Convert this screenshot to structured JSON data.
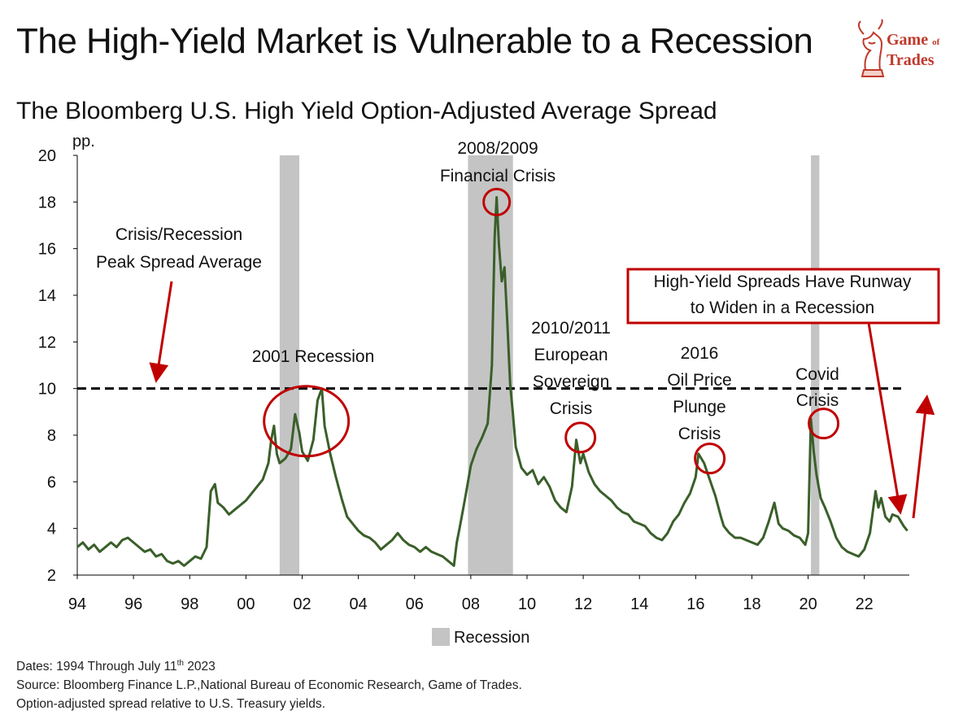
{
  "header": {
    "title": "The High-Yield Market is Vulnerable to a Recession",
    "subtitle": "The Bloomberg U.S. High Yield Option-Adjusted Average Spread"
  },
  "logo": {
    "line1": "Game",
    "line1_small": "of",
    "line2": "Trades",
    "icon": "bull-chess-knight-icon",
    "color": "#c0392b"
  },
  "footer": {
    "dates_prefix": "Dates: 1994 Through July 11",
    "dates_sup": "th",
    "dates_suffix": " 2023",
    "source": "Source: Bloomberg Finance L.P.,National Bureau of Economic Research, Game of Trades.",
    "note": "Option-adjusted spread relative to U.S. Treasury yields."
  },
  "chart_data": {
    "type": "line",
    "title": "The Bloomberg U.S. High Yield Option-Adjusted Average Spread",
    "ylabel": "pp.",
    "xlabel": "",
    "xlim": [
      1994,
      2023.6
    ],
    "ylim": [
      2,
      20
    ],
    "yticks": [
      2,
      4,
      6,
      8,
      10,
      12,
      14,
      16,
      18,
      20
    ],
    "xticks": [
      {
        "year": 1994,
        "label": "94"
      },
      {
        "year": 1996,
        "label": "96"
      },
      {
        "year": 1998,
        "label": "98"
      },
      {
        "year": 2000,
        "label": "00"
      },
      {
        "year": 2002,
        "label": "02"
      },
      {
        "year": 2004,
        "label": "04"
      },
      {
        "year": 2006,
        "label": "06"
      },
      {
        "year": 2008,
        "label": "08"
      },
      {
        "year": 2010,
        "label": "10"
      },
      {
        "year": 2012,
        "label": "12"
      },
      {
        "year": 2014,
        "label": "14"
      },
      {
        "year": 2016,
        "label": "16"
      },
      {
        "year": 2018,
        "label": "18"
      },
      {
        "year": 2020,
        "label": "20"
      },
      {
        "year": 2022,
        "label": "22"
      }
    ],
    "grid": false,
    "colors": {
      "line": "#3a5f2a",
      "recession": "#c4c4c4",
      "annotation": "#c00000",
      "threshold": "#000000"
    },
    "legend": {
      "position": "bottom-center",
      "label": "Recession"
    },
    "recessions": [
      {
        "start": 2001.2,
        "end": 2001.9
      },
      {
        "start": 2007.9,
        "end": 2009.5
      },
      {
        "start": 2020.1,
        "end": 2020.4
      }
    ],
    "threshold": {
      "value": 10
    },
    "series": [
      {
        "x": [
          1994.0,
          1994.2,
          1994.4,
          1994.6,
          1994.8,
          1995.0,
          1995.2,
          1995.4,
          1995.6,
          1995.8,
          1996.0,
          1996.2,
          1996.4,
          1996.6,
          1996.8,
          1997.0,
          1997.2,
          1997.4,
          1997.6,
          1997.8,
          1998.0,
          1998.2,
          1998.4,
          1998.6,
          1998.75,
          1998.9,
          1999.0,
          1999.2,
          1999.4,
          1999.6,
          1999.8,
          2000.0,
          2000.2,
          2000.4,
          2000.6,
          2000.8,
          2000.9,
          2001.0,
          2001.1,
          2001.2,
          2001.4,
          2001.6,
          2001.75,
          2001.9,
          2002.0,
          2002.2,
          2002.4,
          2002.55,
          2002.7,
          2002.8,
          2003.0,
          2003.2,
          2003.4,
          2003.6,
          2003.8,
          2004.0,
          2004.2,
          2004.4,
          2004.6,
          2004.8,
          2005.0,
          2005.2,
          2005.4,
          2005.6,
          2005.8,
          2006.0,
          2006.2,
          2006.4,
          2006.6,
          2006.8,
          2007.0,
          2007.2,
          2007.4,
          2007.5,
          2007.6,
          2007.8,
          2008.0,
          2008.2,
          2008.4,
          2008.6,
          2008.75,
          2008.85,
          2008.92,
          2009.0,
          2009.1,
          2009.2,
          2009.3,
          2009.4,
          2009.5,
          2009.6,
          2009.8,
          2010.0,
          2010.2,
          2010.4,
          2010.6,
          2010.8,
          2011.0,
          2011.2,
          2011.4,
          2011.6,
          2011.75,
          2011.9,
          2012.0,
          2012.2,
          2012.4,
          2012.6,
          2012.8,
          2013.0,
          2013.2,
          2013.4,
          2013.6,
          2013.8,
          2014.0,
          2014.2,
          2014.4,
          2014.6,
          2014.8,
          2015.0,
          2015.2,
          2015.4,
          2015.6,
          2015.8,
          2016.0,
          2016.1,
          2016.3,
          2016.5,
          2016.7,
          2016.9,
          2017.0,
          2017.2,
          2017.4,
          2017.6,
          2017.8,
          2018.0,
          2018.2,
          2018.4,
          2018.6,
          2018.8,
          2018.95,
          2019.1,
          2019.3,
          2019.5,
          2019.7,
          2019.9,
          2020.0,
          2020.1,
          2020.2,
          2020.3,
          2020.45,
          2020.6,
          2020.8,
          2021.0,
          2021.2,
          2021.4,
          2021.6,
          2021.8,
          2022.0,
          2022.2,
          2022.4,
          2022.5,
          2022.6,
          2022.75,
          2022.9,
          2023.0,
          2023.2,
          2023.4,
          2023.53
        ],
        "y": [
          3.2,
          3.4,
          3.1,
          3.3,
          3.0,
          3.2,
          3.4,
          3.2,
          3.5,
          3.6,
          3.4,
          3.2,
          3.0,
          3.1,
          2.8,
          2.9,
          2.6,
          2.5,
          2.6,
          2.4,
          2.6,
          2.8,
          2.7,
          3.2,
          5.6,
          5.9,
          5.1,
          4.9,
          4.6,
          4.8,
          5.0,
          5.2,
          5.5,
          5.8,
          6.1,
          6.8,
          7.8,
          8.4,
          7.2,
          6.8,
          7.0,
          7.4,
          8.9,
          8.1,
          7.3,
          6.9,
          7.8,
          9.5,
          10.0,
          8.4,
          7.2,
          6.2,
          5.3,
          4.5,
          4.2,
          3.9,
          3.7,
          3.6,
          3.4,
          3.1,
          3.3,
          3.5,
          3.8,
          3.5,
          3.3,
          3.2,
          3.0,
          3.2,
          3.0,
          2.9,
          2.8,
          2.6,
          2.4,
          3.4,
          4.0,
          5.3,
          6.7,
          7.4,
          7.9,
          8.5,
          11.0,
          16.5,
          18.2,
          16.2,
          14.6,
          15.2,
          12.8,
          10.2,
          8.9,
          7.5,
          6.6,
          6.3,
          6.5,
          5.9,
          6.2,
          5.8,
          5.2,
          4.9,
          4.7,
          5.8,
          7.8,
          6.8,
          7.2,
          6.4,
          5.9,
          5.6,
          5.4,
          5.2,
          4.9,
          4.7,
          4.6,
          4.3,
          4.2,
          4.1,
          3.8,
          3.6,
          3.5,
          3.8,
          4.3,
          4.6,
          5.1,
          5.5,
          6.2,
          7.2,
          6.8,
          6.1,
          5.4,
          4.5,
          4.1,
          3.8,
          3.6,
          3.6,
          3.5,
          3.4,
          3.3,
          3.6,
          4.3,
          5.1,
          4.2,
          4.0,
          3.9,
          3.7,
          3.6,
          3.3,
          3.8,
          8.7,
          7.3,
          6.3,
          5.3,
          4.9,
          4.3,
          3.6,
          3.2,
          3.0,
          2.9,
          2.8,
          3.1,
          3.8,
          5.6,
          4.9,
          5.3,
          4.5,
          4.3,
          4.6,
          4.5,
          4.1,
          3.9
        ]
      }
    ],
    "annotations": [
      {
        "text": [
          "Crisis/Recession",
          "Peak Spread Average"
        ]
      },
      {
        "text": [
          "2001 Recession"
        ]
      },
      {
        "text": [
          "2008/2009",
          "Financial  Crisis"
        ]
      },
      {
        "text": [
          "2010/2011",
          "European",
          "Sovereign",
          "Crisis"
        ]
      },
      {
        "text": [
          "2016",
          "Oil Price",
          "Plunge",
          "Crisis"
        ]
      },
      {
        "text": [
          "Covid",
          "Crisis"
        ]
      },
      {
        "text": [
          "High-Yield  Spreads Have Runway",
          "to Widen in a Recession"
        ]
      }
    ]
  }
}
